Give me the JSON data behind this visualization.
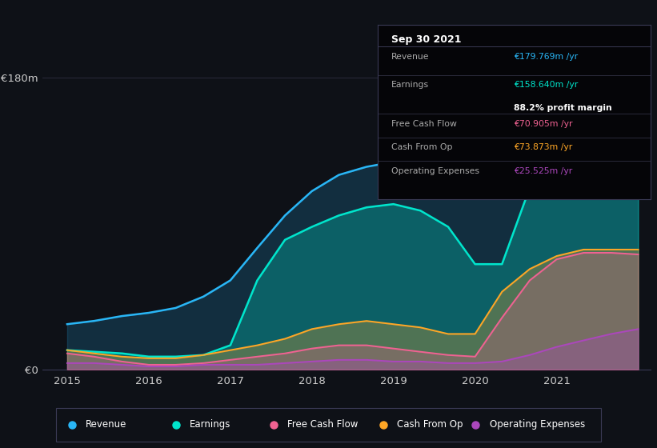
{
  "background_color": "#0e1117",
  "plot_bg_color": "#0e1117",
  "years": [
    2015.0,
    2015.33,
    2015.67,
    2016.0,
    2016.33,
    2016.67,
    2017.0,
    2017.33,
    2017.67,
    2018.0,
    2018.33,
    2018.67,
    2019.0,
    2019.33,
    2019.67,
    2020.0,
    2020.33,
    2020.67,
    2021.0,
    2021.33,
    2021.67,
    2022.0
  ],
  "revenue": [
    28,
    30,
    33,
    35,
    38,
    45,
    55,
    75,
    95,
    110,
    120,
    125,
    128,
    130,
    132,
    135,
    148,
    162,
    170,
    175,
    178,
    180
  ],
  "earnings": [
    12,
    11,
    10,
    8,
    8,
    9,
    15,
    55,
    80,
    88,
    95,
    100,
    102,
    98,
    88,
    65,
    65,
    112,
    140,
    150,
    155,
    158
  ],
  "free_cash_flow": [
    10,
    8,
    5,
    3,
    3,
    4,
    6,
    8,
    10,
    13,
    15,
    15,
    13,
    11,
    9,
    8,
    32,
    55,
    68,
    72,
    72,
    71
  ],
  "cash_from_op": [
    12,
    10,
    8,
    7,
    7,
    9,
    12,
    15,
    19,
    25,
    28,
    30,
    28,
    26,
    22,
    22,
    48,
    62,
    70,
    74,
    74,
    74
  ],
  "op_expenses": [
    4,
    4,
    3,
    2,
    2,
    3,
    3,
    3,
    4,
    5,
    6,
    6,
    5,
    5,
    4,
    4,
    5,
    9,
    14,
    18,
    22,
    25
  ],
  "revenue_color": "#29b6f6",
  "earnings_color": "#00e5cc",
  "fcf_color": "#f06292",
  "cfop_color": "#ffa726",
  "opex_color": "#ab47bc",
  "ylim": [
    0,
    185
  ],
  "ylabel_top": "€180m",
  "ylabel_zero": "€0",
  "xticks": [
    2015,
    2016,
    2017,
    2018,
    2019,
    2020,
    2021
  ],
  "tooltip": {
    "date": "Sep 30 2021",
    "revenue_label": "Revenue",
    "revenue_value": "€179.769m /yr",
    "earnings_label": "Earnings",
    "earnings_value": "€158.640m /yr",
    "margin_value": "88.2% profit margin",
    "fcf_label": "Free Cash Flow",
    "fcf_value": "€70.905m /yr",
    "cfop_label": "Cash From Op",
    "cfop_value": "€73.873m /yr",
    "opex_label": "Operating Expenses",
    "opex_value": "€25.525m /yr"
  },
  "legend": [
    {
      "label": "Revenue",
      "color": "#29b6f6"
    },
    {
      "label": "Earnings",
      "color": "#00e5cc"
    },
    {
      "label": "Free Cash Flow",
      "color": "#f06292"
    },
    {
      "label": "Cash From Op",
      "color": "#ffa726"
    },
    {
      "label": "Operating Expenses",
      "color": "#ab47bc"
    }
  ]
}
